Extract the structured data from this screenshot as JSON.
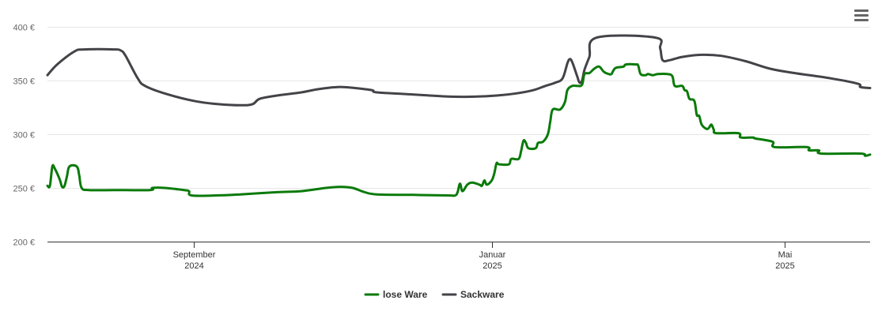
{
  "chart_data": {
    "type": "line",
    "x_axis": {
      "ticks": [
        {
          "date": "2024-09-01",
          "label_line1": "September",
          "label_line2": "2024"
        },
        {
          "date": "2025-01-01",
          "label_line1": "Januar",
          "label_line2": "2025"
        },
        {
          "date": "2025-05-01",
          "label_line1": "Mai",
          "label_line2": "2025"
        }
      ],
      "range": [
        "2024-07-03",
        "2025-06-05"
      ]
    },
    "y_axis": {
      "ticks": [
        200,
        250,
        300,
        350,
        400
      ],
      "tick_labels": [
        "200 €",
        "250 €",
        "300 €",
        "350 €",
        "400 €"
      ],
      "range": [
        200,
        400
      ],
      "grid": true
    },
    "legend": {
      "position": "bottom-center"
    },
    "series": [
      {
        "name": "lose Ware",
        "color": "#0a7a0a",
        "points": [
          [
            "2024-07-03",
            252
          ],
          [
            "2024-07-04",
            252
          ],
          [
            "2024-07-05",
            270
          ],
          [
            "2024-07-06",
            268
          ],
          [
            "2024-07-08",
            258
          ],
          [
            "2024-07-09",
            251
          ],
          [
            "2024-07-10",
            252
          ],
          [
            "2024-07-11",
            261
          ],
          [
            "2024-07-12",
            270
          ],
          [
            "2024-07-15",
            270
          ],
          [
            "2024-07-16",
            262
          ],
          [
            "2024-07-17",
            250
          ],
          [
            "2024-07-20",
            248
          ],
          [
            "2024-07-30",
            248
          ],
          [
            "2024-08-14",
            248
          ],
          [
            "2024-08-15",
            250
          ],
          [
            "2024-08-20",
            250
          ],
          [
            "2024-08-28",
            248
          ],
          [
            "2024-08-30",
            247
          ],
          [
            "2024-08-31",
            243
          ],
          [
            "2024-09-10",
            243
          ],
          [
            "2024-09-20",
            244
          ],
          [
            "2024-10-05",
            246
          ],
          [
            "2024-10-15",
            247
          ],
          [
            "2024-10-25",
            250
          ],
          [
            "2024-10-31",
            251
          ],
          [
            "2024-11-05",
            250
          ],
          [
            "2024-11-10",
            246
          ],
          [
            "2024-11-15",
            244
          ],
          [
            "2024-11-30",
            243.5
          ],
          [
            "2024-12-14",
            243
          ],
          [
            "2024-12-17",
            243
          ],
          [
            "2024-12-18",
            246
          ],
          [
            "2024-12-19",
            254
          ],
          [
            "2024-12-20",
            247
          ],
          [
            "2024-12-22",
            253
          ],
          [
            "2024-12-24",
            255
          ],
          [
            "2024-12-27",
            253
          ],
          [
            "2024-12-28",
            252
          ],
          [
            "2024-12-29",
            257
          ],
          [
            "2024-12-30",
            253
          ],
          [
            "2025-01-01",
            257
          ],
          [
            "2025-01-02",
            263
          ],
          [
            "2025-01-03",
            273
          ],
          [
            "2025-01-04",
            272
          ],
          [
            "2025-01-08",
            272
          ],
          [
            "2025-01-09",
            277
          ],
          [
            "2025-01-12",
            277
          ],
          [
            "2025-01-13",
            284
          ],
          [
            "2025-01-14",
            294
          ],
          [
            "2025-01-15",
            292
          ],
          [
            "2025-01-16",
            287
          ],
          [
            "2025-01-19",
            287
          ],
          [
            "2025-01-20",
            292
          ],
          [
            "2025-01-22",
            293
          ],
          [
            "2025-01-24",
            300
          ],
          [
            "2025-01-25",
            312
          ],
          [
            "2025-01-26",
            323
          ],
          [
            "2025-01-29",
            323
          ],
          [
            "2025-01-31",
            330
          ],
          [
            "2025-02-01",
            341
          ],
          [
            "2025-02-03",
            345
          ],
          [
            "2025-02-05",
            345
          ],
          [
            "2025-02-07",
            346
          ],
          [
            "2025-02-08",
            356
          ],
          [
            "2025-02-10",
            357
          ],
          [
            "2025-02-12",
            361
          ],
          [
            "2025-02-14",
            363
          ],
          [
            "2025-02-16",
            358
          ],
          [
            "2025-02-18",
            356
          ],
          [
            "2025-02-19",
            356
          ],
          [
            "2025-02-20",
            360
          ],
          [
            "2025-02-21",
            362
          ],
          [
            "2025-02-24",
            363
          ],
          [
            "2025-02-25",
            365
          ],
          [
            "2025-03-01",
            365
          ],
          [
            "2025-03-02",
            364
          ],
          [
            "2025-03-03",
            356
          ],
          [
            "2025-03-05",
            355
          ],
          [
            "2025-03-06",
            356
          ],
          [
            "2025-03-08",
            355
          ],
          [
            "2025-03-10",
            356
          ],
          [
            "2025-03-14",
            356
          ],
          [
            "2025-03-16",
            354
          ],
          [
            "2025-03-17",
            345
          ],
          [
            "2025-03-20",
            345
          ],
          [
            "2025-03-21",
            341
          ],
          [
            "2025-03-22",
            340
          ],
          [
            "2025-03-23",
            333
          ],
          [
            "2025-03-25",
            331
          ],
          [
            "2025-03-26",
            318
          ],
          [
            "2025-03-27",
            317
          ],
          [
            "2025-03-28",
            309
          ],
          [
            "2025-03-30",
            305
          ],
          [
            "2025-03-31",
            306
          ],
          [
            "2025-04-01",
            309
          ],
          [
            "2025-04-02",
            304
          ],
          [
            "2025-04-03",
            301
          ],
          [
            "2025-04-12",
            301
          ],
          [
            "2025-04-13",
            297
          ],
          [
            "2025-04-18",
            297
          ],
          [
            "2025-04-19",
            296
          ],
          [
            "2025-04-26",
            293
          ],
          [
            "2025-04-27",
            288
          ],
          [
            "2025-05-10",
            288
          ],
          [
            "2025-05-11",
            285
          ],
          [
            "2025-05-15",
            285
          ],
          [
            "2025-05-16",
            282
          ],
          [
            "2025-06-01",
            282
          ],
          [
            "2025-06-03",
            280
          ],
          [
            "2025-06-05",
            281
          ]
        ]
      },
      {
        "name": "Sackware",
        "color": "#434348",
        "points": [
          [
            "2024-07-03",
            355
          ],
          [
            "2024-07-07",
            365
          ],
          [
            "2024-07-14",
            377
          ],
          [
            "2024-07-18",
            379
          ],
          [
            "2024-07-30",
            379
          ],
          [
            "2024-08-02",
            378
          ],
          [
            "2024-08-04",
            373
          ],
          [
            "2024-08-09",
            352
          ],
          [
            "2024-08-12",
            345
          ],
          [
            "2024-08-20",
            338
          ],
          [
            "2024-09-01",
            331
          ],
          [
            "2024-09-11",
            328
          ],
          [
            "2024-09-20",
            327
          ],
          [
            "2024-09-25",
            328
          ],
          [
            "2024-09-28",
            333
          ],
          [
            "2024-10-05",
            336
          ],
          [
            "2024-10-15",
            339
          ],
          [
            "2024-10-22",
            342
          ],
          [
            "2024-10-30",
            344
          ],
          [
            "2024-11-06",
            343
          ],
          [
            "2024-11-13",
            341
          ],
          [
            "2024-11-15",
            339
          ],
          [
            "2024-11-30",
            337
          ],
          [
            "2024-12-15",
            335
          ],
          [
            "2024-12-25",
            335
          ],
          [
            "2025-01-03",
            336
          ],
          [
            "2025-01-11",
            338
          ],
          [
            "2025-01-18",
            341
          ],
          [
            "2025-01-23",
            345
          ],
          [
            "2025-01-27",
            348
          ],
          [
            "2025-01-30",
            352
          ],
          [
            "2025-02-01",
            366
          ],
          [
            "2025-02-02",
            370
          ],
          [
            "2025-02-03",
            367
          ],
          [
            "2025-02-05",
            354
          ],
          [
            "2025-02-06",
            348
          ],
          [
            "2025-02-07",
            350
          ],
          [
            "2025-02-08",
            360
          ],
          [
            "2025-02-10",
            372
          ],
          [
            "2025-02-13",
            390
          ],
          [
            "2025-03-09",
            390
          ],
          [
            "2025-03-11",
            380
          ],
          [
            "2025-03-12",
            369
          ],
          [
            "2025-03-15",
            369
          ],
          [
            "2025-03-20",
            372
          ],
          [
            "2025-03-28",
            374
          ],
          [
            "2025-04-05",
            373
          ],
          [
            "2025-04-15",
            368
          ],
          [
            "2025-04-25",
            361
          ],
          [
            "2025-05-05",
            357
          ],
          [
            "2025-05-20",
            352
          ],
          [
            "2025-05-31",
            347
          ],
          [
            "2025-06-01",
            344
          ],
          [
            "2025-06-05",
            343
          ]
        ]
      }
    ]
  },
  "toolbar": {
    "menu_icon": "hamburger-menu-icon"
  }
}
